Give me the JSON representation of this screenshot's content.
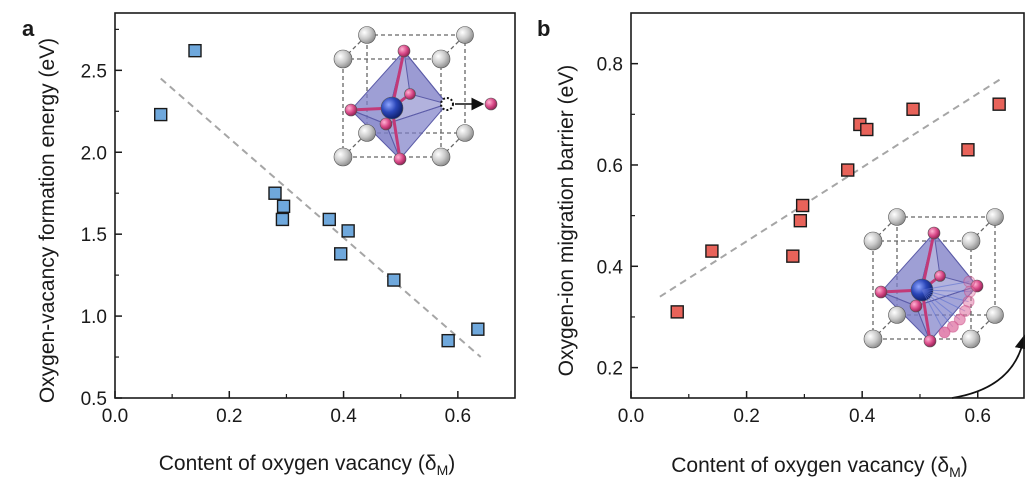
{
  "colors": {
    "panel_a_marker": "#6fa8dc",
    "panel_b_marker": "#e8635a",
    "marker_edge": "#1a1a1a",
    "fit_line": "#a6a6a6",
    "octahedron": "#7e7fc7",
    "center_atom": "#2a46b8",
    "oxygen_atom": "#d94a88",
    "corner_atom": "#c8c8c8"
  },
  "chart_data": [
    {
      "type": "scatter",
      "panel_label": "a",
      "xlabel_main": "Content of oxygen vacancy (δ",
      "xlabel_sub": "M",
      "xlabel_close": ")",
      "ylabel": "Oxygen-vacancy formation energy (eV)",
      "xlim": [
        0.0,
        0.7
      ],
      "ylim": [
        0.5,
        2.85
      ],
      "x_ticks": [
        0.0,
        0.2,
        0.4,
        0.6
      ],
      "x_tick_labels": [
        "0.0",
        "0.2",
        "0.4",
        "0.6"
      ],
      "y_ticks": [
        0.5,
        1.0,
        1.5,
        2.0,
        2.5
      ],
      "y_tick_labels": [
        "0.5",
        "1.0",
        "1.5",
        "2.0",
        "2.5"
      ],
      "grid": false,
      "points": [
        {
          "x": 0.08,
          "y": 2.23
        },
        {
          "x": 0.14,
          "y": 2.62
        },
        {
          "x": 0.28,
          "y": 1.75
        },
        {
          "x": 0.295,
          "y": 1.67
        },
        {
          "x": 0.293,
          "y": 1.59
        },
        {
          "x": 0.375,
          "y": 1.59
        },
        {
          "x": 0.408,
          "y": 1.52
        },
        {
          "x": 0.395,
          "y": 1.38
        },
        {
          "x": 0.488,
          "y": 1.22
        },
        {
          "x": 0.583,
          "y": 0.85
        },
        {
          "x": 0.635,
          "y": 0.92
        }
      ],
      "fit_line": {
        "x": [
          0.08,
          0.64
        ],
        "y": [
          2.45,
          0.75
        ]
      },
      "inset": "perovskite-octahedron-vacancy-formation"
    },
    {
      "type": "scatter",
      "panel_label": "b",
      "xlabel_main": "Content of oxygen vacancy (δ",
      "xlabel_sub": "M",
      "xlabel_close": ")",
      "ylabel": "Oxygen-ion migration barrier (eV)",
      "xlim": [
        0.0,
        0.68
      ],
      "ylim": [
        0.14,
        0.9
      ],
      "x_ticks": [
        0.0,
        0.2,
        0.4,
        0.6
      ],
      "x_tick_labels": [
        "0.0",
        "0.2",
        "0.4",
        "0.6"
      ],
      "y_ticks": [
        0.2,
        0.4,
        0.6,
        0.8
      ],
      "y_tick_labels": [
        "0.2",
        "0.4",
        "0.6",
        "0.8"
      ],
      "grid": false,
      "points": [
        {
          "x": 0.08,
          "y": 0.31
        },
        {
          "x": 0.14,
          "y": 0.43
        },
        {
          "x": 0.28,
          "y": 0.42
        },
        {
          "x": 0.293,
          "y": 0.49
        },
        {
          "x": 0.297,
          "y": 0.52
        },
        {
          "x": 0.375,
          "y": 0.59
        },
        {
          "x": 0.396,
          "y": 0.68
        },
        {
          "x": 0.408,
          "y": 0.67
        },
        {
          "x": 0.488,
          "y": 0.71
        },
        {
          "x": 0.583,
          "y": 0.63
        },
        {
          "x": 0.637,
          "y": 0.72
        }
      ],
      "fit_line": {
        "x": [
          0.05,
          0.64
        ],
        "y": [
          0.34,
          0.77
        ]
      },
      "inset": "perovskite-octahedron-ion-migration"
    }
  ]
}
